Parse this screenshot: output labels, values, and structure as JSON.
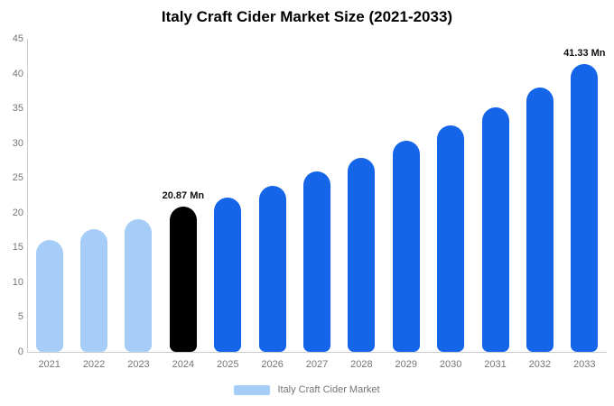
{
  "title": "Italy Craft Cider Market Size (2021-2033)",
  "legend": {
    "label": "Italy Craft Cider Market",
    "swatch_color": "#a6cdf7"
  },
  "colors": {
    "light_blue": "#a6cdf7",
    "highlight_black": "#000000",
    "blue": "#1565e8",
    "axis_line": "#cccccc",
    "axis_text": "#757575",
    "title_text": "#000000",
    "background": "#ffffff"
  },
  "chart_data": {
    "type": "bar",
    "title": "Italy Craft Cider Market Size (2021-2033)",
    "xlabel": "",
    "ylabel": "",
    "unit": "Mn",
    "categories": [
      "2021",
      "2022",
      "2023",
      "2024",
      "2025",
      "2026",
      "2027",
      "2028",
      "2029",
      "2030",
      "2031",
      "2032",
      "2033"
    ],
    "values": [
      16.1,
      17.6,
      19.1,
      20.87,
      22.2,
      23.9,
      26.0,
      27.9,
      30.3,
      32.6,
      35.1,
      38.0,
      41.33
    ],
    "bar_colors": [
      "#a6cdf7",
      "#a6cdf7",
      "#a6cdf7",
      "#000000",
      "#1565e8",
      "#1565e8",
      "#1565e8",
      "#1565e8",
      "#1565e8",
      "#1565e8",
      "#1565e8",
      "#1565e8",
      "#1565e8"
    ],
    "annotations": [
      {
        "category": "2024",
        "text": "20.87 Mn"
      },
      {
        "category": "2033",
        "text": "41.33 Mn"
      }
    ],
    "ylim": [
      0,
      45
    ],
    "yticks": [
      0,
      5,
      10,
      15,
      20,
      25,
      30,
      35,
      40,
      45
    ],
    "grid": false,
    "legend_position": "bottom",
    "legend_entries": [
      "Italy Craft Cider Market"
    ]
  }
}
